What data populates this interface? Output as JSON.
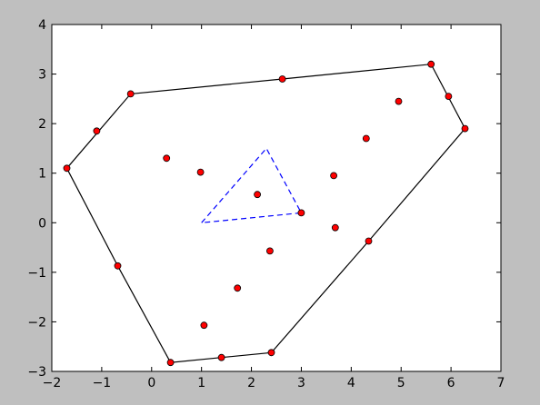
{
  "chart_data": {
    "type": "scatter",
    "title": "",
    "xlabel": "",
    "ylabel": "",
    "xlim": [
      -2,
      7
    ],
    "ylim": [
      -3,
      4
    ],
    "xticks": [
      -2,
      -1,
      0,
      1,
      2,
      3,
      4,
      5,
      6,
      7
    ],
    "yticks": [
      -3,
      -2,
      -1,
      0,
      1,
      2,
      3,
      4
    ],
    "grid": false,
    "colors": {
      "figure_background": "#bfbfbf",
      "axes_background": "#ffffff",
      "points": "#ff0000",
      "hull_line": "#000000",
      "triangle_line": "#0000ff"
    },
    "points": [
      {
        "x": -1.7,
        "y": 1.1
      },
      {
        "x": -1.1,
        "y": 1.85
      },
      {
        "x": -0.42,
        "y": 2.6
      },
      {
        "x": 2.62,
        "y": 2.9
      },
      {
        "x": 5.6,
        "y": 3.2
      },
      {
        "x": 5.95,
        "y": 2.55
      },
      {
        "x": 6.28,
        "y": 1.9
      },
      {
        "x": 4.95,
        "y": 2.45
      },
      {
        "x": 4.3,
        "y": 1.7
      },
      {
        "x": 3.65,
        "y": 0.95
      },
      {
        "x": 0.3,
        "y": 1.3
      },
      {
        "x": 0.98,
        "y": 1.02
      },
      {
        "x": 2.12,
        "y": 0.57
      },
      {
        "x": 3.0,
        "y": 0.2
      },
      {
        "x": 3.68,
        "y": -0.1
      },
      {
        "x": 4.35,
        "y": -0.37
      },
      {
        "x": -0.68,
        "y": -0.87
      },
      {
        "x": 2.37,
        "y": -0.57
      },
      {
        "x": 1.72,
        "y": -1.32
      },
      {
        "x": 1.05,
        "y": -2.07
      },
      {
        "x": 0.38,
        "y": -2.82
      },
      {
        "x": 1.4,
        "y": -2.72
      },
      {
        "x": 2.4,
        "y": -2.62
      }
    ],
    "series": [
      {
        "style": "solid",
        "x": [
          -1.7,
          -0.42,
          2.62,
          5.6,
          6.28,
          4.35,
          2.4,
          0.38,
          -0.68,
          -1.7
        ],
        "y": [
          1.1,
          2.6,
          2.9,
          3.2,
          1.9,
          -0.37,
          -2.62,
          -2.82,
          -0.87,
          1.1
        ]
      },
      {
        "style": "dashed",
        "x": [
          1.0,
          2.3,
          3.0,
          1.0
        ],
        "y": [
          0.0,
          1.5,
          0.2,
          0.0
        ]
      }
    ]
  }
}
